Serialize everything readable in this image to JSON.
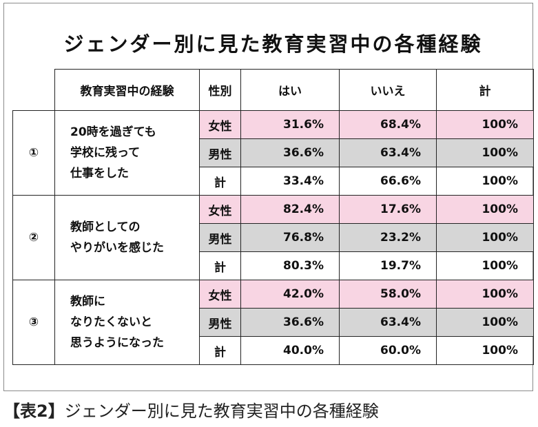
{
  "title": "ジェンダー別に見た教育実習中の各種経験",
  "table": {
    "headers": {
      "experience": "教育実習中の経験",
      "gender": "性別",
      "yes": "はい",
      "no": "いいえ",
      "total": "計"
    },
    "groups": [
      {
        "num": "①",
        "lines": [
          "20時を過ぎても",
          "学校に残って",
          "仕事をした"
        ],
        "rows": [
          {
            "gender": "女性",
            "yes": "31.6%",
            "no": "68.4%",
            "total": "100%"
          },
          {
            "gender": "男性",
            "yes": "36.6%",
            "no": "63.4%",
            "total": "100%"
          },
          {
            "gender": "計",
            "yes": "33.4%",
            "no": "66.6%",
            "total": "100%"
          }
        ]
      },
      {
        "num": "②",
        "lines": [
          "教師としての",
          "やりがいを感じた"
        ],
        "rows": [
          {
            "gender": "女性",
            "yes": "82.4%",
            "no": "17.6%",
            "total": "100%"
          },
          {
            "gender": "男性",
            "yes": "76.8%",
            "no": "23.2%",
            "total": "100%"
          },
          {
            "gender": "計",
            "yes": "80.3%",
            "no": "19.7%",
            "total": "100%"
          }
        ]
      },
      {
        "num": "③",
        "lines": [
          "教師に",
          "なりたくないと",
          "思うようになった"
        ],
        "rows": [
          {
            "gender": "女性",
            "yes": "42.0%",
            "no": "58.0%",
            "total": "100%"
          },
          {
            "gender": "男性",
            "yes": "36.6%",
            "no": "63.4%",
            "total": "100%"
          },
          {
            "gender": "計",
            "yes": "40.0%",
            "no": "60.0%",
            "total": "100%"
          }
        ]
      }
    ]
  },
  "colors": {
    "female_row": "#f8d5e3",
    "male_row": "#d6d6d6"
  },
  "caption": {
    "label": "【表2】",
    "text": "ジェンダー別に見た教育実習中の各種経験"
  }
}
